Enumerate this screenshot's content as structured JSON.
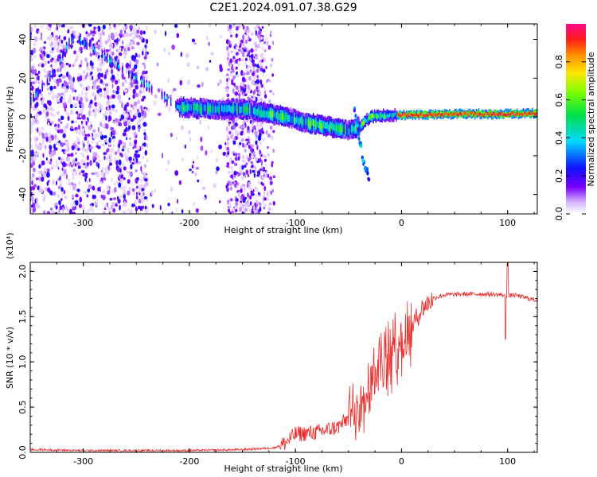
{
  "title": "C2E1.2024.091.07.38.G29",
  "colors": {
    "snr_line": "#e8302e",
    "spectrogram_main": "#5a00ff",
    "background": "#ffffff"
  },
  "chart_data": [
    {
      "type": "heatmap",
      "name_tag": "spectrogram",
      "xlabel": "Height of straight line (km)",
      "ylabel": "Frequency (Hz)",
      "xlim": [
        -350,
        128
      ],
      "ylim": [
        -50,
        48
      ],
      "xticks": [
        -300,
        -200,
        -100,
        0,
        100
      ],
      "yticks": [
        -40,
        -20,
        0,
        20,
        40
      ],
      "colorbar": {
        "label": "Normalized spectral amplitude",
        "range": [
          0,
          1
        ],
        "ticks": [
          "0.0",
          "0.2",
          "0.4",
          "0.6",
          "0.8"
        ],
        "colormap": "rainbow (white-violet-blue-cyan-green-yellow-red-pink)"
      },
      "ridge": [
        {
          "x": -350,
          "y": 8
        },
        {
          "x": -330,
          "y": 22
        },
        {
          "x": -310,
          "y": 42
        },
        {
          "x": -210,
          "y": 5
        },
        {
          "x": -180,
          "y": 4
        },
        {
          "x": -150,
          "y": 4
        },
        {
          "x": -130,
          "y": 2
        },
        {
          "x": -110,
          "y": 0
        },
        {
          "x": -90,
          "y": -3
        },
        {
          "x": -70,
          "y": -5
        },
        {
          "x": -50,
          "y": -7
        },
        {
          "x": -40,
          "y": -5
        },
        {
          "x": -30,
          "y": 0
        },
        {
          "x": -10,
          "y": 1
        },
        {
          "x": 0,
          "y": 1
        },
        {
          "x": 50,
          "y": 1.5
        },
        {
          "x": 100,
          "y": 1.5
        },
        {
          "x": 128,
          "y": 2
        }
      ],
      "side_branch": [
        {
          "x": -45,
          "y": 5
        },
        {
          "x": -40,
          "y": -10
        },
        {
          "x": -35,
          "y": -25
        },
        {
          "x": -30,
          "y": -32
        }
      ],
      "noise_region_x": [
        -350,
        -135
      ]
    },
    {
      "type": "line",
      "xlabel": "Height of straight line (km)",
      "ylabel": "SNR (10 * v/v)",
      "y_multiplier": "(x10⁴)",
      "xlim": [
        -350,
        128
      ],
      "ylim": [
        0,
        2.1
      ],
      "xticks": [
        -300,
        -200,
        -100,
        0,
        100
      ],
      "yticks": [
        "0.0",
        "0.5",
        "1.0",
        "1.5",
        "2.0"
      ],
      "series": [
        {
          "x": [
            -350,
            -300,
            -250,
            -200,
            -150,
            -120,
            -110,
            -100,
            -80,
            -60,
            -50,
            -40,
            -30,
            -20,
            -10,
            0,
            10,
            20,
            30,
            40,
            60,
            80,
            95,
            100,
            105,
            110,
            120,
            128
          ],
          "y": [
            0.03,
            0.02,
            0.02,
            0.02,
            0.03,
            0.05,
            0.1,
            0.2,
            0.22,
            0.28,
            0.38,
            0.55,
            0.8,
            0.95,
            1.05,
            1.2,
            1.4,
            1.6,
            1.7,
            1.74,
            1.75,
            1.75,
            1.74,
            1.72,
            1.74,
            1.73,
            1.7,
            1.68
          ]
        }
      ]
    }
  ]
}
